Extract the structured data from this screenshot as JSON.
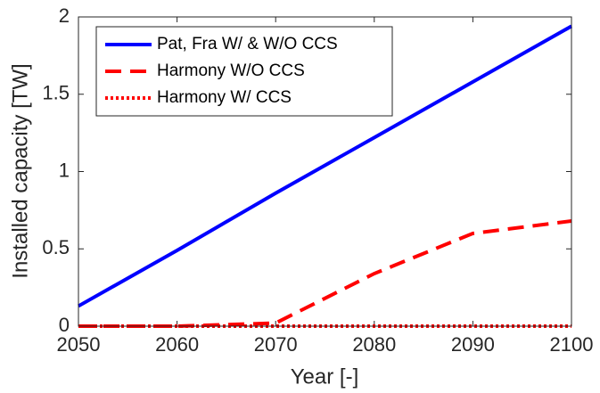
{
  "chart_data": {
    "type": "line",
    "xlabel": "Year [-]",
    "ylabel": "Installed capacity [TW]",
    "x": [
      2050,
      2060,
      2070,
      2080,
      2090,
      2100
    ],
    "series": [
      {
        "name": "Pat, Fra W/ & W/O CCS",
        "color": "#0000ff",
        "dash": "solid",
        "values": [
          0.13,
          0.49,
          0.86,
          1.22,
          1.58,
          1.94
        ]
      },
      {
        "name": "Harmony W/O CCS",
        "color": "#ff0000",
        "dash": "dashed",
        "values": [
          0,
          0,
          0.02,
          0.34,
          0.6,
          0.68
        ]
      },
      {
        "name": "Harmony W/ CCS",
        "color": "#ff0000",
        "dash": "dotted",
        "values": [
          0,
          0,
          0,
          0,
          0,
          0
        ]
      }
    ],
    "xlim": [
      2050,
      2100
    ],
    "xticks": [
      2050,
      2060,
      2070,
      2080,
      2090,
      2100
    ],
    "ylim": [
      0,
      2
    ],
    "yticks": [
      0,
      0.5,
      1,
      1.5,
      2
    ],
    "grid": false,
    "legend": "upper-left"
  }
}
